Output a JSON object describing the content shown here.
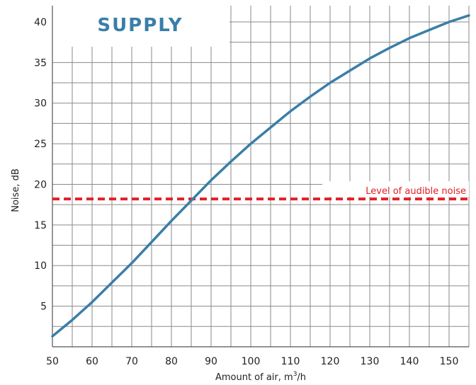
{
  "chart_data": {
    "type": "line",
    "title": "SUPPLY",
    "xlabel": "Amount of air, m",
    "xlabel_sup": "3",
    "xlabel_suffix": "/h",
    "ylabel": "Noise, dB",
    "xlim": [
      50,
      155
    ],
    "ylim": [
      0,
      42
    ],
    "x_ticks": [
      50,
      60,
      70,
      80,
      90,
      100,
      110,
      120,
      130,
      140,
      150
    ],
    "y_ticks": [
      5,
      10,
      15,
      20,
      25,
      30,
      35,
      40
    ],
    "x_minor_step": 5,
    "y_minor_step": 2.5,
    "grid": true,
    "series": [
      {
        "color": "#3a7ea8",
        "x": [
          50,
          55,
          60,
          65,
          70,
          75,
          80,
          85,
          90,
          95,
          100,
          105,
          110,
          115,
          120,
          125,
          130,
          135,
          140,
          145,
          150,
          155
        ],
        "y": [
          1.3,
          3.3,
          5.5,
          7.9,
          10.3,
          12.9,
          15.5,
          18.0,
          20.5,
          22.8,
          25.0,
          27.0,
          29.0,
          30.8,
          32.5,
          34.0,
          35.5,
          36.8,
          38.0,
          39.0,
          40.0,
          40.8
        ]
      }
    ],
    "reference_line": {
      "y": 18.2,
      "label": "Level of audible noise",
      "color": "#e0202a"
    },
    "title_color": "#3a7ea8"
  }
}
